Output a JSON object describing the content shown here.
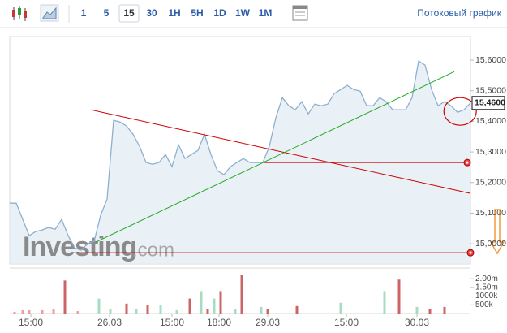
{
  "toolbar": {
    "intervals": [
      "1",
      "5",
      "15",
      "30",
      "1H",
      "5H",
      "1D",
      "1W",
      "1M"
    ],
    "selected_index": 2,
    "stream_label": "Потоковый график"
  },
  "chart_data": {
    "type": "area",
    "color": "#8fb0d0",
    "fill_color": "#e4edf5",
    "x": [
      0,
      1,
      2,
      3,
      4,
      5,
      6,
      7,
      8,
      9,
      10,
      11,
      12,
      13,
      14,
      15,
      16,
      17,
      18,
      19,
      20,
      21,
      22,
      23,
      24,
      25,
      26,
      27,
      28,
      29,
      30,
      31,
      32,
      33,
      34,
      35,
      36,
      37,
      38,
      39,
      40,
      41,
      42,
      43,
      44,
      45,
      46,
      47,
      48,
      49,
      50,
      51,
      52,
      53,
      54,
      55,
      56,
      57,
      58,
      59,
      60,
      61,
      62,
      63,
      64,
      65,
      66,
      67,
      68,
      69,
      70,
      71
    ],
    "values": [
      15.1326,
      15.1326,
      15.0796,
      15.0265,
      15.0398,
      15.0451,
      15.0531,
      15.0477,
      15.0796,
      15.0265,
      14.9867,
      14.9788,
      15.0,
      15.008,
      15.0928,
      15.1459,
      15.4032,
      15.3979,
      15.3846,
      15.3581,
      15.3183,
      15.2653,
      15.2599,
      15.2653,
      15.2918,
      15.252,
      15.3236,
      15.2785,
      15.2918,
      15.305,
      15.3581,
      15.2918,
      15.2387,
      15.2255,
      15.252,
      15.2653,
      15.2785,
      15.2653,
      15.2653,
      15.2653,
      15.3183,
      15.4111,
      15.4775,
      15.4509,
      15.4377,
      15.4642,
      15.4244,
      15.4562,
      15.4509,
      15.4562,
      15.4907,
      15.504,
      15.5172,
      15.504,
      15.4987,
      15.4509,
      15.4509,
      15.4775,
      15.4642,
      15.4377,
      15.4377,
      15.4377,
      15.4775,
      15.5968,
      15.5836,
      15.504,
      15.4509,
      15.4642,
      15.4509,
      15.4297,
      15.4377,
      15.46
    ],
    "last_label": "15,4600",
    "xlim": [
      0,
      71
    ],
    "ylim": [
      14.934,
      15.677
    ],
    "xticks": [
      {
        "value": 3.25,
        "label": "15:00"
      },
      {
        "value": 15.375,
        "label": "26.03"
      },
      {
        "value": 25,
        "label": "15:00"
      },
      {
        "value": 32.25,
        "label": "18:00"
      },
      {
        "value": 39.75,
        "label": "29.03"
      },
      {
        "value": 51.875,
        "label": "15:00"
      },
      {
        "value": 62.75,
        "label": "30.03"
      }
    ],
    "yticks": [
      {
        "value": 15.0,
        "label": "15,0000"
      },
      {
        "value": 15.1,
        "label": "15,1000"
      },
      {
        "value": 15.2,
        "label": "15,2000"
      },
      {
        "value": 15.3,
        "label": "15,3000"
      },
      {
        "value": 15.4,
        "label": "15,4000"
      },
      {
        "value": 15.5,
        "label": "15,5000"
      },
      {
        "value": 15.6,
        "label": "15,6000"
      }
    ],
    "volume": {
      "x": [
        0.75,
        2,
        3,
        5,
        6.75,
        8.5,
        10.5,
        13.75,
        15.5,
        18,
        19.5,
        21.25,
        23.25,
        25.75,
        27.75,
        29.5,
        30.5,
        31.5,
        32.5,
        34.75,
        35.75,
        38.75,
        39.75,
        44.25,
        51,
        57.75,
        60,
        62.75,
        64.75,
        67
      ],
      "values": [
        95000,
        190000,
        190000,
        190000,
        240000,
        1900000,
        140000,
        860000,
        240000,
        570000,
        240000,
        480000,
        480000,
        190000,
        860000,
        1290000,
        240000,
        860000,
        1290000,
        240000,
        2240000,
        380000,
        240000,
        430000,
        620000,
        1290000,
        1950000,
        380000,
        240000,
        380000
      ],
      "colors": [
        "#e8a0a0",
        "#e8a0a0",
        "#e8a0a0",
        "#e8a0a0",
        "#e8a0a0",
        "#cc6666",
        "#e8a0a0",
        "#a8dcc0",
        "#a8dcc0",
        "#cc6666",
        "#a8dcc0",
        "#cc6666",
        "#a8dcc0",
        "#a8dcc0",
        "#cc6666",
        "#a8dcc0",
        "#cc6666",
        "#a8dcc0",
        "#cc6666",
        "#a8dcc0",
        "#cc6666",
        "#a8dcc0",
        "#cc6666",
        "#cc6666",
        "#a8dcc0",
        "#a8dcc0",
        "#cc6666",
        "#a8dcc0",
        "#cc6666",
        "#cc6666"
      ],
      "ylim": [
        0,
        2500000
      ],
      "yticks": [
        {
          "value": 500000,
          "label": "500k"
        },
        {
          "value": 1000000,
          "label": "1000k"
        },
        {
          "value": 1500000,
          "label": "1.50m"
        },
        {
          "value": 2000000,
          "label": "2.00m"
        }
      ]
    },
    "trend_lines": [
      {
        "x": [
          12.5,
          71
        ],
        "values": [
          15.4377,
          15.1645
        ],
        "color": "#cc0000"
      },
      {
        "x": [
          13.25,
          68.5
        ],
        "values": [
          15.0053,
          15.5623
        ],
        "color": "#22aa22"
      }
    ],
    "horizontal_lines": [
      {
        "x": [
          39.125,
          70.5
        ],
        "value": 15.2653,
        "color": "#cc0000"
      },
      {
        "x": [
          10.375,
          71
        ],
        "value": 14.9708,
        "color": "#cc0000"
      }
    ],
    "ellipse": {
      "x": 69.4,
      "value": 15.4324,
      "color": "#cc0000"
    },
    "watermark": {
      "brand": "Investing",
      "suffix": ".com"
    }
  }
}
